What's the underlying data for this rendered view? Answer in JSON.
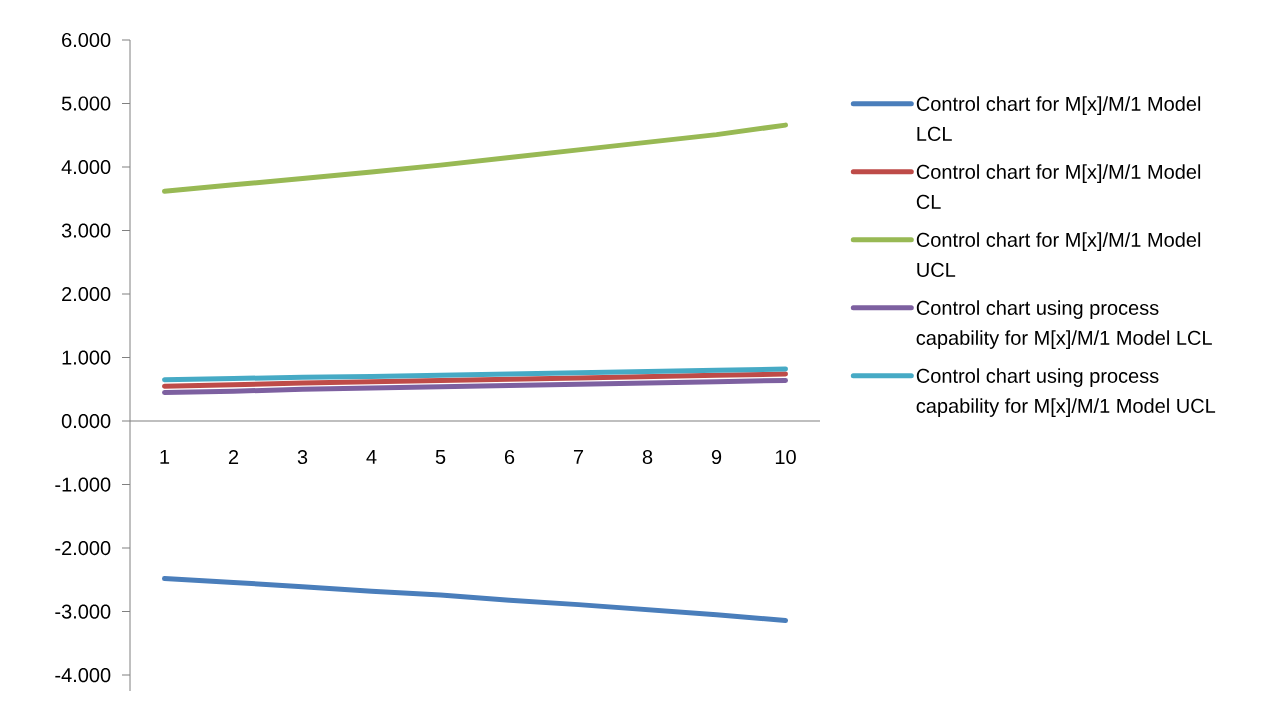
{
  "chart_data": {
    "type": "line",
    "categories": [
      "1",
      "2",
      "3",
      "4",
      "5",
      "6",
      "7",
      "8",
      "9",
      "10"
    ],
    "series": [
      {
        "name": "Control chart for M[x]/M/1 Model LCL",
        "color": "#4a7ebb",
        "values": [
          -2.48,
          -2.54,
          -2.61,
          -2.68,
          -2.74,
          -2.82,
          -2.89,
          -2.97,
          -3.05,
          -3.14
        ]
      },
      {
        "name": "Control chart for M[x]/M/1 Model CL",
        "color": "#be4b48",
        "values": [
          0.55,
          0.57,
          0.6,
          0.62,
          0.64,
          0.66,
          0.68,
          0.7,
          0.72,
          0.74
        ]
      },
      {
        "name": "Control chart for M[x]/M/1 Model UCL",
        "color": "#98b954",
        "values": [
          3.62,
          3.72,
          3.82,
          3.92,
          4.03,
          4.15,
          4.27,
          4.39,
          4.51,
          4.66
        ]
      },
      {
        "name": "Control chart using process capability for M[x]/M/1 Model LCL",
        "color": "#7d60a0",
        "values": [
          0.45,
          0.47,
          0.5,
          0.52,
          0.54,
          0.56,
          0.58,
          0.6,
          0.62,
          0.64
        ]
      },
      {
        "name": "Control chart using process capability for M[x]/M/1 Model UCL",
        "color": "#46aac5",
        "values": [
          0.65,
          0.67,
          0.69,
          0.7,
          0.72,
          0.74,
          0.76,
          0.78,
          0.8,
          0.82
        ]
      }
    ],
    "ylim": [
      -4.25,
      6
    ],
    "yticks": [
      {
        "value": -4,
        "label": "-4.000"
      },
      {
        "value": -3,
        "label": "-3.000"
      },
      {
        "value": -2,
        "label": "-2.000"
      },
      {
        "value": -1,
        "label": "-1.000"
      },
      {
        "value": 0,
        "label": "0.000"
      },
      {
        "value": 1,
        "label": "1.000"
      },
      {
        "value": 2,
        "label": "2.000"
      },
      {
        "value": 3,
        "label": "3.000"
      },
      {
        "value": 4,
        "label": "4.000"
      },
      {
        "value": 5,
        "label": "5.000"
      },
      {
        "value": 6,
        "label": "6.000"
      }
    ],
    "legend": "right"
  }
}
